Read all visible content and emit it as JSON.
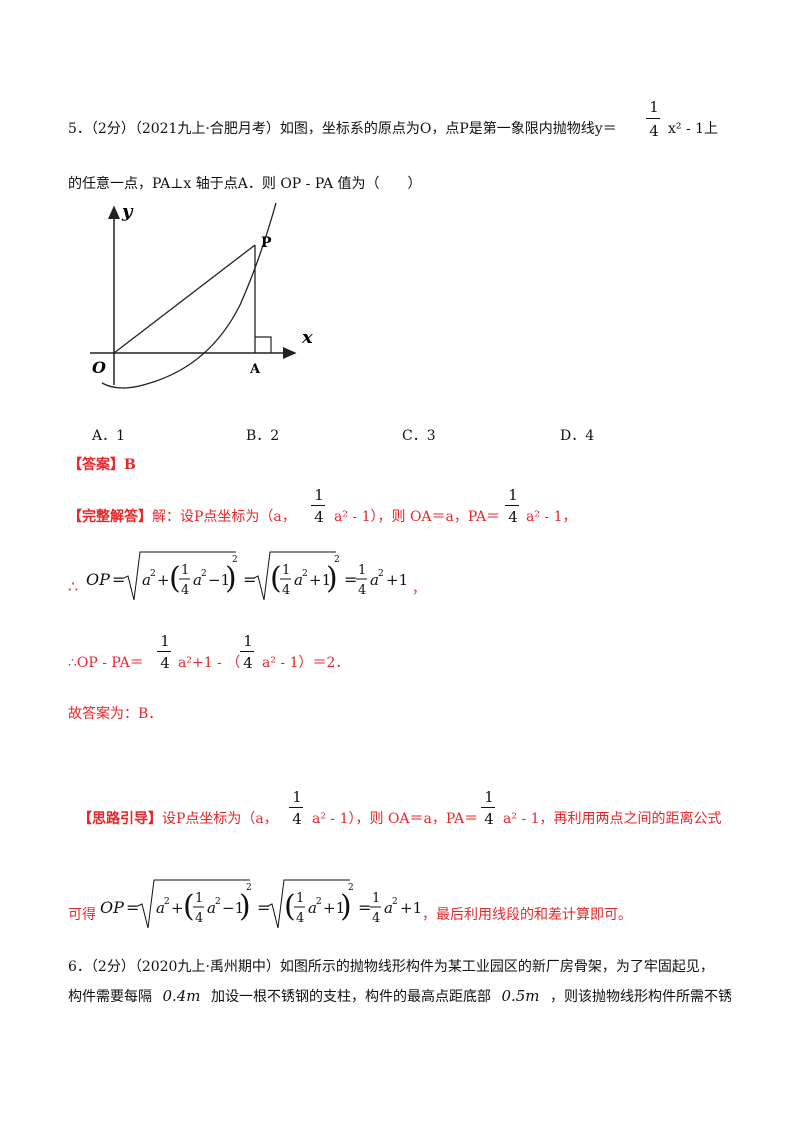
{
  "q5": {
    "line1": "5．（2分）（2021九上·合肥月考）如图，坐标系的原点为O，点P是第一象限内抛物线y＝",
    "frac_num": "1",
    "frac_den": "4",
    "line1_tail": "x² - 1上",
    "line2": "的任意一点，PA⊥x 轴于点A．则 OP - PA 值为（　　）",
    "figure": {
      "y_label": "y",
      "x_label": "x",
      "p_label": "P",
      "o_label": "O",
      "a_label": "A"
    },
    "options": [
      "A．1",
      "B．2",
      "C．3",
      "D．4"
    ],
    "answer_tag": "【答案】",
    "answer": "B",
    "solution_tag": "【完整解答】",
    "sol_line1_a": "解：设P点坐标为（a，",
    "sol_line1_b": "a² - 1），则 OA＝a，PA＝",
    "sol_line1_c": "a² - 1，",
    "sol_line2_prefix": "∴",
    "sol_line2_tail": "，",
    "sol_line3_a": "∴OP - PA＝",
    "sol_line3_b": "a²+1 - （",
    "sol_line3_c": "a² - 1）＝2．",
    "sol_line4": "故答案为：B．",
    "hint_tag": "【思路引导】",
    "hint_a": "设P点坐标为（a，",
    "hint_b": "a² - 1），则 OA＝a，PA＝",
    "hint_c": "a² - 1，再利用两点之间的距离公式",
    "hint2_prefix": "可得",
    "hint2_tail": "，最后利用线段的和差计算即可。"
  },
  "q6": {
    "line1": "6．（2分）（2020九上·禹州期中）如图所示的抛物线形构件为某工业园区的新厂房骨架，为了牢固起见，",
    "line2_a": "构件需要每隔",
    "val1": "0.4m",
    "line2_b": "加设一根不锈钢的支柱，构件的最高点距底部",
    "val2": "0.5m",
    "line2_c": "，则该抛物线形构件所需不锈"
  }
}
